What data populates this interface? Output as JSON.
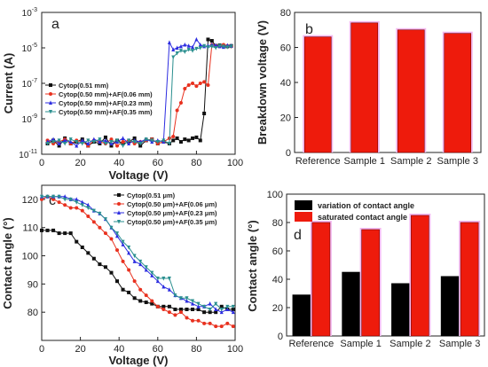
{
  "colors": {
    "black": "#111111",
    "red": "#e8311f",
    "blue": "#2c2ce0",
    "teal": "#2a8f8f",
    "bar_red": "#ee1b0c",
    "bar_black": "#000000",
    "bar_glow": "#f3b9f0"
  },
  "chart_data": [
    {
      "panel": "a",
      "type": "line",
      "xlabel": "Voltage (V)",
      "ylabel": "Current (A)",
      "xlim": [
        0,
        100
      ],
      "ylim": [
        1e-11,
        0.001
      ],
      "yscale": "log",
      "xticks": [
        "0",
        "20",
        "40",
        "60",
        "80",
        "100"
      ],
      "yticks": [
        {
          "base": "10",
          "exp": "-11"
        },
        {
          "base": "10",
          "exp": "-9"
        },
        {
          "base": "10",
          "exp": "-7"
        },
        {
          "base": "10",
          "exp": "-5"
        },
        {
          "base": "10",
          "exp": "-3"
        }
      ],
      "legend": "left",
      "series": [
        {
          "name": "Cytop(0.51 mm)",
          "color": "black",
          "marker": "square",
          "x": [
            3,
            6,
            9,
            12,
            15,
            18,
            21,
            24,
            27,
            30,
            33,
            36,
            39,
            42,
            45,
            48,
            51,
            54,
            57,
            60,
            63,
            66,
            68,
            70,
            72,
            74,
            76,
            78,
            80,
            82,
            84,
            86,
            88,
            90,
            92,
            94,
            96,
            98
          ],
          "y": [
            4e-11,
            6e-11,
            3e-11,
            8e-11,
            4e-11,
            5e-11,
            7e-11,
            3e-11,
            5e-11,
            4e-11,
            9e-11,
            3e-11,
            6e-11,
            4e-11,
            5e-11,
            8e-11,
            3e-11,
            6e-11,
            7e-11,
            4e-11,
            5e-11,
            4e-11,
            6e-11,
            8e-11,
            5e-11,
            7e-11,
            6e-11,
            8e-11,
            9e-11,
            6e-11,
            2e-09,
            3e-05,
            2.5e-05,
            1.3e-05,
            1.4e-05,
            1.3e-05,
            1.2e-05,
            1.3e-05
          ]
        },
        {
          "name": "Cytop(0.50 mm)+AF(0.06 mm)",
          "color": "red",
          "marker": "circle",
          "x": [
            3,
            6,
            9,
            12,
            15,
            18,
            21,
            24,
            27,
            30,
            33,
            36,
            39,
            42,
            45,
            48,
            51,
            54,
            57,
            60,
            63,
            66,
            68,
            70,
            72,
            74,
            76,
            78,
            80,
            82,
            84,
            86,
            88,
            90,
            92,
            94,
            96,
            98
          ],
          "y": [
            6e-11,
            4e-11,
            5e-11,
            7e-11,
            4e-11,
            6e-11,
            5e-11,
            3e-11,
            6e-11,
            5e-11,
            4e-11,
            7e-11,
            3e-11,
            5e-11,
            6e-11,
            4e-11,
            5e-11,
            6e-11,
            7e-11,
            4e-11,
            5e-11,
            8e-11,
            1e-10,
            3e-09,
            8e-09,
            5e-08,
            8e-08,
            1e-07,
            7e-08,
            1e-07,
            1.2e-07,
            8e-08,
            1.5e-05,
            1.3e-05,
            1.2e-05,
            1.5e-05,
            1.3e-05,
            1.2e-05
          ]
        },
        {
          "name": "Cytop(0.50 mm)+AF(0.23 mm)",
          "color": "blue",
          "marker": "triangle",
          "x": [
            3,
            6,
            9,
            12,
            15,
            18,
            21,
            24,
            27,
            30,
            33,
            36,
            39,
            42,
            45,
            48,
            51,
            54,
            57,
            60,
            63,
            66,
            68,
            70,
            72,
            74,
            76,
            78,
            80,
            82,
            84,
            86,
            88,
            90,
            92,
            94,
            96,
            98
          ],
          "y": [
            5e-11,
            7e-11,
            4e-11,
            6e-11,
            5e-11,
            3e-11,
            6e-11,
            4e-11,
            7e-11,
            5e-11,
            6e-11,
            4e-11,
            5e-11,
            8e-11,
            4e-11,
            6e-11,
            5e-11,
            7e-11,
            5e-11,
            6e-11,
            5e-11,
            2e-05,
            8e-06,
            1e-05,
            1.2e-05,
            1.5e-05,
            1.3e-05,
            1.1e-05,
            3e-05,
            1.5e-05,
            1.2e-05,
            1.3e-05,
            1.5e-05,
            1.4e-05,
            1.2e-05,
            1.1e-05,
            1.4e-05,
            1.3e-05
          ]
        },
        {
          "name": "Cytop(0.50 mm)+AF(0.35 mm)",
          "color": "teal",
          "marker": "triangle-down",
          "x": [
            3,
            6,
            9,
            12,
            15,
            18,
            21,
            24,
            27,
            30,
            33,
            36,
            39,
            42,
            45,
            48,
            51,
            54,
            57,
            60,
            63,
            66,
            68,
            70,
            72,
            74,
            76,
            78,
            80,
            82,
            84,
            86,
            88,
            90,
            92,
            94,
            96,
            98
          ],
          "y": [
            4e-11,
            5e-11,
            6e-11,
            4e-11,
            7e-11,
            5e-11,
            4e-11,
            6e-11,
            5e-11,
            7e-11,
            4e-11,
            5e-11,
            6e-11,
            3e-11,
            6e-11,
            5e-11,
            4e-11,
            7e-11,
            6e-11,
            5e-11,
            6e-11,
            4e-11,
            3e-06,
            5e-06,
            7e-06,
            6e-06,
            8e-06,
            7e-06,
            9e-06,
            1e-05,
            1.3e-05,
            1.1e-05,
            1.2e-05,
            1e-05,
            1.3e-05,
            1.2e-05,
            1.1e-05,
            1.2e-05
          ]
        }
      ]
    },
    {
      "panel": "b",
      "type": "bar",
      "ylabel": "Breakdown voltage (V)",
      "categories": [
        "Reference",
        "Sample 1",
        "Sample 2",
        "Sample 3"
      ],
      "values": [
        66,
        74,
        70,
        68
      ],
      "ylim": [
        0,
        80
      ],
      "yticks": [
        "0",
        "20",
        "40",
        "60",
        "80"
      ]
    },
    {
      "panel": "c",
      "type": "line",
      "xlabel": "Voltage (V)",
      "ylabel": "Contact angle (°)",
      "xlim": [
        0,
        100
      ],
      "ylim": [
        70,
        125
      ],
      "xticks": [
        "0",
        "20",
        "40",
        "60",
        "80",
        "100"
      ],
      "yticks": [
        "80",
        "90",
        "100",
        "110",
        "120"
      ],
      "legend": "top-right",
      "series": [
        {
          "name": "Cytop(0.51 μm)",
          "color": "black",
          "marker": "square",
          "x": [
            0,
            3,
            6,
            9,
            12,
            15,
            18,
            21,
            24,
            27,
            30,
            33,
            36,
            39,
            42,
            45,
            48,
            51,
            54,
            57,
            60,
            63,
            66,
            69,
            72,
            75,
            78,
            81,
            84,
            87,
            90,
            93,
            96,
            99
          ],
          "y": [
            109,
            109,
            109,
            108,
            108,
            108,
            105,
            103,
            101,
            99,
            97,
            96,
            94,
            91,
            88,
            87,
            85,
            84,
            83.5,
            83,
            82,
            82,
            82,
            81,
            81,
            81,
            81,
            81,
            80,
            80,
            80,
            82,
            81,
            81
          ]
        },
        {
          "name": "Cytop(0.50 μm)+AF(0.06 μm)",
          "color": "red",
          "marker": "circle",
          "x": [
            0,
            3,
            6,
            9,
            12,
            15,
            18,
            21,
            24,
            27,
            30,
            33,
            36,
            39,
            42,
            45,
            48,
            51,
            54,
            57,
            60,
            63,
            66,
            69,
            72,
            75,
            78,
            81,
            84,
            87,
            90,
            93,
            96,
            99
          ],
          "y": [
            120,
            121,
            120,
            119,
            118,
            117,
            117,
            116,
            114,
            112,
            110,
            108,
            106,
            102,
            98,
            95,
            91,
            88,
            86,
            84,
            82,
            81,
            80,
            79,
            80,
            78,
            77,
            77,
            76,
            76,
            75,
            75,
            76,
            75
          ]
        },
        {
          "name": "Cytop(0.50 μm)+AF(0.23 μm)",
          "color": "blue",
          "marker": "triangle",
          "x": [
            0,
            3,
            6,
            9,
            12,
            15,
            18,
            21,
            24,
            27,
            30,
            33,
            36,
            39,
            42,
            45,
            48,
            51,
            54,
            57,
            60,
            63,
            66,
            69,
            72,
            75,
            78,
            81,
            84,
            87,
            90,
            93,
            96,
            99
          ],
          "y": [
            121,
            121,
            121,
            121,
            121,
            120,
            120,
            119,
            118,
            116,
            115,
            113,
            110,
            107,
            104,
            101,
            98,
            97,
            95,
            93,
            91,
            89,
            88,
            86,
            85,
            84,
            83,
            82,
            82,
            83,
            81,
            80,
            81,
            80
          ]
        },
        {
          "name": "Cytop(0.50 μm)+AF(0.35 μm)",
          "color": "teal",
          "marker": "triangle-down",
          "x": [
            0,
            3,
            6,
            9,
            12,
            15,
            18,
            21,
            24,
            27,
            30,
            33,
            36,
            39,
            42,
            45,
            48,
            51,
            54,
            57,
            60,
            63,
            66,
            69,
            72,
            75,
            78,
            81,
            84,
            87,
            90,
            93,
            96,
            99
          ],
          "y": [
            121,
            121,
            121,
            121,
            120,
            120,
            119,
            118,
            117,
            116,
            115,
            113,
            110,
            108,
            105,
            103,
            100,
            98,
            96,
            94,
            92,
            92,
            92,
            86,
            85,
            85,
            84,
            83,
            82,
            81,
            83,
            81,
            82,
            82
          ]
        }
      ]
    },
    {
      "panel": "d",
      "type": "bar",
      "ylabel": "Contact angle (°)",
      "categories": [
        "Reference",
        "Sample 1",
        "Sample 2",
        "Sample 3"
      ],
      "ylim": [
        0,
        100
      ],
      "yticks": [
        "0",
        "20",
        "40",
        "60",
        "80",
        "100"
      ],
      "legend": "top",
      "series": [
        {
          "name": "variation of contact angle",
          "color": "bar_black",
          "values": [
            29,
            45,
            37,
            42
          ]
        },
        {
          "name": "saturated contact angle",
          "color": "bar_red",
          "values": [
            80,
            75,
            85,
            80
          ]
        }
      ]
    }
  ]
}
